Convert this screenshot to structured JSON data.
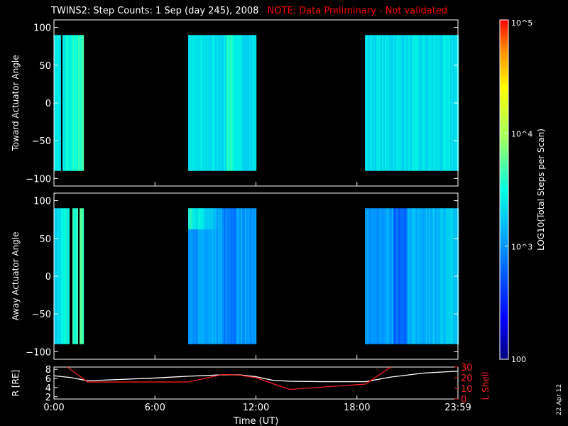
{
  "title": {
    "main": "TWINS2: Step Counts:  1 Sep (day 245), 2008",
    "note": "NOTE: Data Preliminary - Not validated",
    "note_color": "#ff0000"
  },
  "side_date": "22 Apr 12",
  "colorbar": {
    "label": "LOG10(Total Steps per Scan)",
    "ticks": [
      {
        "value": 100000,
        "label": "10^5"
      },
      {
        "value": 10000,
        "label": "10^4"
      },
      {
        "value": 1000,
        "label": "10^3"
      },
      {
        "value": 100,
        "label": "100"
      }
    ]
  },
  "chart_data": [
    {
      "type": "heatmap",
      "ylabel": "Toward Actuator Angle",
      "xlim": [
        0,
        24
      ],
      "ylim": [
        -110,
        110
      ],
      "data_y_range": [
        -90,
        90
      ],
      "yticks": [
        100,
        50,
        0,
        -50,
        -100
      ],
      "segments_hours": [
        [
          0.0,
          1.75
        ],
        [
          8.0,
          12.0
        ],
        [
          18.5,
          24.0
        ]
      ],
      "scale": "log",
      "value_range": [
        100,
        100000
      ]
    },
    {
      "type": "heatmap",
      "ylabel": "Away Actuator Angle",
      "xlim": [
        0,
        24
      ],
      "ylim": [
        -110,
        110
      ],
      "data_y_range": [
        -90,
        90
      ],
      "yticks": [
        100,
        50,
        0,
        -50,
        -100
      ],
      "segments_hours": [
        [
          0.0,
          1.75
        ],
        [
          8.0,
          12.0
        ],
        [
          18.5,
          24.0
        ]
      ],
      "scale": "log",
      "value_range": [
        100,
        100000
      ]
    },
    {
      "type": "line",
      "xlabel": "Time (UT)",
      "xticks": [
        "0:00",
        "6:00",
        "12:00",
        "18:00",
        "23:59"
      ],
      "xlim": [
        0,
        24
      ],
      "y_left_label": "R [RE]",
      "y_left_ticks": [
        8,
        6,
        4,
        2
      ],
      "y_left_range": [
        1.5,
        8.5
      ],
      "y_right_label": "L Shell",
      "y_right_ticks": [
        30,
        20,
        10,
        0
      ],
      "y_right_range": [
        0,
        30
      ],
      "series": [
        {
          "axis": "left",
          "color": "#ffffff",
          "x": [
            0,
            1,
            2,
            4,
            6,
            8,
            10,
            11,
            12,
            13,
            14,
            16,
            18.5,
            20,
            22,
            24
          ],
          "y": [
            6.6,
            6.2,
            5.5,
            5.8,
            6.1,
            6.5,
            6.8,
            6.8,
            6.4,
            5.6,
            5.4,
            5.3,
            5.3,
            6.3,
            7.2,
            7.6
          ]
        },
        {
          "axis": "right",
          "color": "#ff2222",
          "x": [
            0.8,
            2.0,
            8.0,
            10.0,
            11.0,
            12.0,
            14.0,
            18.5,
            20.0
          ],
          "y": [
            30,
            16,
            16,
            23,
            22.5,
            20,
            9,
            14,
            31
          ]
        }
      ]
    }
  ]
}
